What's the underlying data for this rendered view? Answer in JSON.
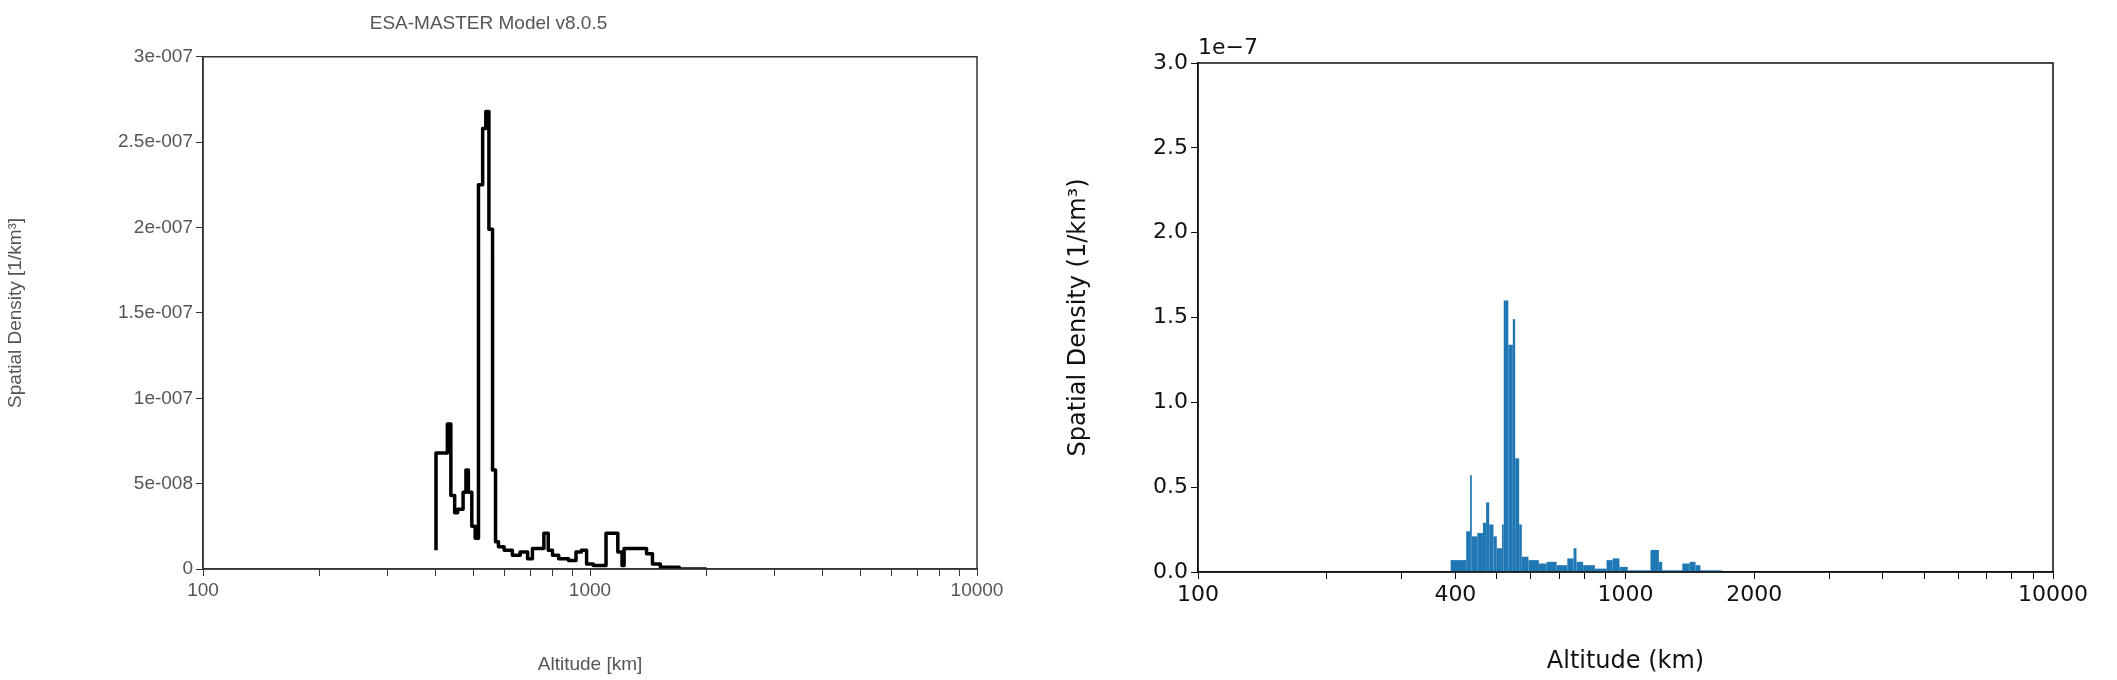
{
  "chart_data": [
    {
      "type": "step",
      "title": "ESA-MASTER Model v8.0.5",
      "xlabel": "Altitude [km]",
      "ylabel": "Spatial Density [1/km³]",
      "log": "x",
      "grid": false,
      "marker": "none",
      "x": [
        400,
        428,
        437,
        447,
        455,
        470,
        478,
        485,
        495,
        505,
        515,
        528,
        538,
        548,
        560,
        570,
        580,
        600,
        630,
        660,
        690,
        710,
        760,
        780,
        800,
        830,
        880,
        920,
        950,
        980,
        1020,
        1100,
        1180,
        1210,
        1225,
        1400,
        1450,
        1520,
        1700,
        2000
      ],
      "series": [
        {
          "color": "#000000",
          "values": [
            1.1e-08,
            6.8e-08,
            8.5e-08,
            4.3e-08,
            3.3e-08,
            3.5e-08,
            4.5e-08,
            5.8e-08,
            4.5e-08,
            2.5e-08,
            1.8e-08,
            2.25e-07,
            2.58e-07,
            2.68e-07,
            1.99e-07,
            5.8e-08,
            1.6e-08,
            1.3e-08,
            1.1e-08,
            8e-09,
            1e-08,
            6e-09,
            1.2e-08,
            2.1e-08,
            1.1e-08,
            8e-09,
            6e-09,
            5e-09,
            1e-08,
            1.1e-08,
            3e-09,
            2e-09,
            2.1e-08,
            1e-08,
            2e-09,
            1.2e-08,
            9e-09,
            3e-09,
            1e-09,
            0
          ]
        }
      ],
      "xlim": [
        100,
        10000
      ],
      "xticks": [
        100,
        {
          "value": 200,
          "label": null
        },
        {
          "value": 300,
          "label": null
        },
        {
          "value": 400,
          "label": null
        },
        {
          "value": 500,
          "label": null
        },
        {
          "value": 600,
          "label": null
        },
        {
          "value": 700,
          "label": null
        },
        {
          "value": 800,
          "label": null
        },
        {
          "value": 900,
          "label": null
        },
        1000,
        {
          "value": 2000,
          "label": null
        },
        {
          "value": 3000,
          "label": null
        },
        {
          "value": 4000,
          "label": null
        },
        {
          "value": 5000,
          "label": null
        },
        {
          "value": 6000,
          "label": null
        },
        {
          "value": 7000,
          "label": null
        },
        {
          "value": 8000,
          "label": null
        },
        {
          "value": 9000,
          "label": null
        },
        10000
      ],
      "ylim": [
        0,
        3e-07
      ],
      "yticks": [
        0,
        {
          "value": 5e-08,
          "label": "5e-008"
        },
        {
          "value": 1e-07,
          "label": "1e-007"
        },
        {
          "value": 1.5e-07,
          "label": "1.5e-007"
        },
        {
          "value": 2e-07,
          "label": "2e-007"
        },
        {
          "value": 2.5e-07,
          "label": "2.5e-007"
        },
        {
          "value": 3e-07,
          "label": "3e-007"
        }
      ]
    },
    {
      "type": "histogram",
      "xlabel": "Altitude (km)",
      "ylabel": "Spatial Density (1/km³)",
      "log": "x",
      "grid": false,
      "color": "#1f77b4",
      "annotations": [
        "1e−7"
      ],
      "bins": [
        390,
        424,
        433,
        437,
        450,
        464,
        472,
        480,
        491,
        500,
        514,
        519,
        532,
        545,
        552,
        564,
        572,
        593,
        627,
        654,
        690,
        731,
        756,
        768,
        796,
        848,
        903,
        933,
        968,
        1012,
        1144,
        1197,
        1219,
        1358,
        1413,
        1458,
        1497,
        1677
      ],
      "values": [
        0.07,
        0.24,
        0.57,
        0.21,
        0.23,
        0.29,
        0.41,
        0.28,
        0.21,
        0.14,
        0.28,
        1.6,
        1.34,
        1.49,
        0.67,
        0.28,
        0.09,
        0.07,
        0.05,
        0.06,
        0.04,
        0.08,
        0.14,
        0.06,
        0.04,
        0.02,
        0.07,
        0.08,
        0.03,
        0.01,
        0.13,
        0.06,
        0.01,
        0.05,
        0.06,
        0.04,
        0.01
      ],
      "xlim": [
        100,
        10000
      ],
      "xticks": [
        100,
        {
          "value": 200,
          "label": null
        },
        {
          "value": 300,
          "label": null
        },
        400,
        {
          "value": 500,
          "label": null
        },
        {
          "value": 600,
          "label": null
        },
        {
          "value": 700,
          "label": null
        },
        {
          "value": 800,
          "label": null
        },
        {
          "value": 900,
          "label": null
        },
        1000,
        2000,
        {
          "value": 3000,
          "label": null
        },
        {
          "value": 4000,
          "label": null
        },
        {
          "value": 5000,
          "label": null
        },
        {
          "value": 6000,
          "label": null
        },
        {
          "value": 7000,
          "label": null
        },
        {
          "value": 8000,
          "label": null
        },
        {
          "value": 9000,
          "label": null
        },
        10000
      ],
      "ylim": [
        0,
        3
      ],
      "yticks": [
        {
          "value": 0,
          "label": "0.0"
        },
        0.5,
        {
          "value": 1,
          "label": "1.0"
        },
        1.5,
        {
          "value": 2,
          "label": "2.0"
        },
        2.5,
        {
          "value": 3,
          "label": "3.0"
        }
      ]
    }
  ]
}
